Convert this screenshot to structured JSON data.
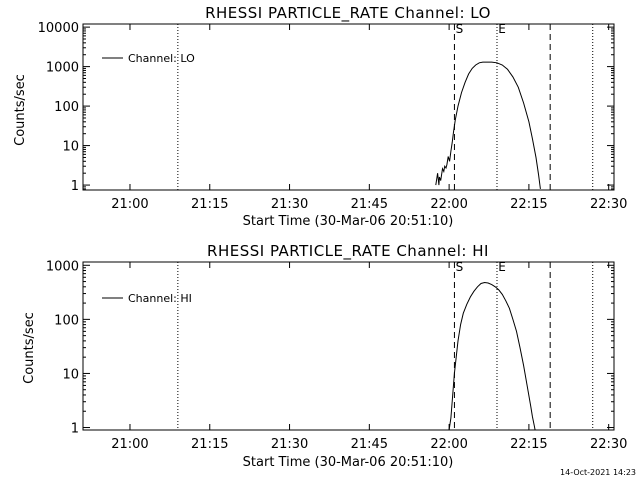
{
  "chart_data": [
    {
      "type": "line",
      "title": "RHESSI PARTICLE_RATE Channel: LO",
      "xlabel": "Start Time (30-Mar-06 20:51:10)",
      "ylabel": "Counts/sec",
      "yscale": "log",
      "x_ticks": [
        "21:00",
        "21:15",
        "21:30",
        "21:45",
        "22:00",
        "22:15",
        "22:30"
      ],
      "y_ticks": [
        "1",
        "10",
        "100",
        "1000",
        "10000"
      ],
      "xlim": [
        "20:51:10",
        "22:31"
      ],
      "ylim": [
        0.75,
        12000
      ],
      "markers": [
        {
          "label": "S",
          "time": "22:01"
        },
        {
          "label": "E",
          "time": "22:09"
        }
      ],
      "dotted_lines": [
        "21:09",
        "22:09",
        "22:27"
      ],
      "dashed_lines": [
        "22:01",
        "22:19"
      ],
      "legend": {
        "position": "top-left",
        "entries": [
          "Channel: LO"
        ]
      },
      "series": [
        {
          "name": "Channel: LO",
          "x": [
            "21:57:30",
            "21:57:50",
            "21:58:05",
            "21:58:10",
            "21:58:25",
            "21:58:45",
            "21:59:00",
            "21:59:10",
            "21:59:25",
            "21:59:35",
            "21:59:50",
            "22:00:05",
            "22:00:20",
            "22:00:35",
            "22:00:50",
            "22:01:10",
            "22:01:40",
            "22:02:20",
            "22:03:00",
            "22:03:40",
            "22:04:20",
            "22:05:00",
            "22:05:40",
            "22:06:20",
            "22:07:00",
            "22:08:00",
            "22:09:00",
            "22:10:00",
            "22:11:00",
            "22:12:00",
            "22:13:00",
            "22:14:00",
            "22:15:00",
            "22:15:40",
            "22:16:20",
            "22:16:50",
            "22:17:10"
          ],
          "values": [
            1.0,
            2.0,
            1.0,
            1.6,
            1.3,
            2.6,
            2.2,
            3.0,
            2.7,
            3.3,
            5.3,
            4.0,
            7.2,
            12,
            22,
            45,
            100,
            220,
            400,
            650,
            900,
            1100,
            1250,
            1300,
            1300,
            1300,
            1250,
            1100,
            850,
            550,
            300,
            120,
            40,
            15,
            5,
            1.8,
            0.8
          ]
        }
      ]
    },
    {
      "type": "line",
      "title": "RHESSI PARTICLE_RATE Channel: HI",
      "xlabel": "Start Time (30-Mar-06 20:51:10)",
      "ylabel": "Counts/sec",
      "yscale": "log",
      "x_ticks": [
        "21:00",
        "21:15",
        "21:30",
        "21:45",
        "22:00",
        "22:15",
        "22:30"
      ],
      "y_ticks": [
        "1",
        "10",
        "100",
        "1000"
      ],
      "xlim": [
        "20:51:10",
        "22:31"
      ],
      "ylim": [
        0.9,
        1150
      ],
      "markers": [
        {
          "label": "S",
          "time": "22:01"
        },
        {
          "label": "E",
          "time": "22:09"
        }
      ],
      "dotted_lines": [
        "21:09",
        "22:09",
        "22:27"
      ],
      "dashed_lines": [
        "22:01",
        "22:19"
      ],
      "legend": {
        "position": "top-left",
        "entries": [
          "Channel: HI"
        ]
      },
      "series": [
        {
          "name": "Channel: HI",
          "x": [
            "22:00:00",
            "22:00:20",
            "22:00:40",
            "22:01:00",
            "22:01:20",
            "22:01:40",
            "22:02:10",
            "22:02:40",
            "22:03:20",
            "22:04:00",
            "22:04:40",
            "22:05:20",
            "22:06:00",
            "22:06:40",
            "22:07:20",
            "22:08:00",
            "22:08:40",
            "22:09:20",
            "22:10:00",
            "22:10:40",
            "22:11:20",
            "22:12:00",
            "22:12:40",
            "22:13:20",
            "22:14:00",
            "22:14:40",
            "22:15:20",
            "22:15:40",
            "22:16:00",
            "22:16:10"
          ],
          "values": [
            0.85,
            1.5,
            4,
            10,
            20,
            40,
            80,
            130,
            190,
            260,
            330,
            400,
            460,
            480,
            470,
            440,
            400,
            350,
            290,
            220,
            160,
            100,
            60,
            30,
            14,
            6,
            2.5,
            1.6,
            1.1,
            0.85
          ]
        }
      ]
    }
  ],
  "footer": {
    "timestamp": "14-Oct-2021 14:23"
  }
}
